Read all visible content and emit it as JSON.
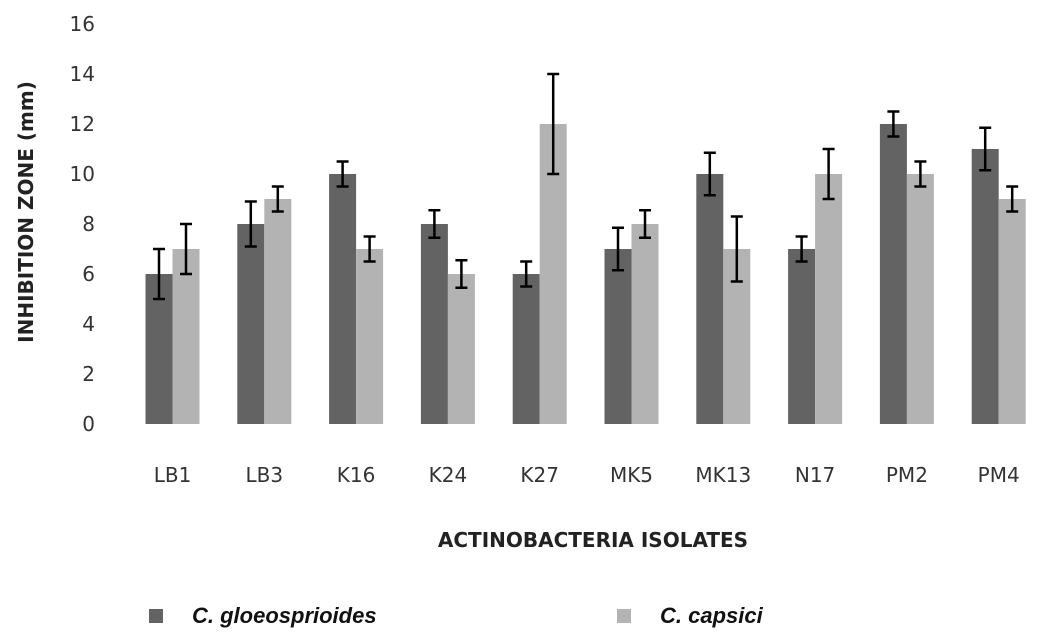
{
  "chart_data": {
    "type": "bar",
    "xlabel": "ACTINOBACTERIA ISOLATES",
    "ylabel": "INHIBITION ZONE (mm)",
    "ylim": [
      0,
      16
    ],
    "yticks": [
      0,
      2,
      4,
      6,
      8,
      10,
      12,
      14,
      16
    ],
    "grid": false,
    "legend_position": "bottom",
    "categories": [
      "LB1",
      "LB3",
      "K16",
      "K24",
      "K27",
      "MK5",
      "MK13",
      "N17",
      "PM2",
      "PM4"
    ],
    "series": [
      {
        "name": "C. gloeosprioides",
        "color": "#636363",
        "values": [
          6,
          8,
          10,
          8,
          6,
          7,
          10,
          7,
          12,
          11
        ],
        "error": [
          1.0,
          0.9,
          0.5,
          0.55,
          0.5,
          0.85,
          0.85,
          0.5,
          0.5,
          0.85
        ]
      },
      {
        "name": "C. capsici",
        "color": "#b3b3b3",
        "values": [
          7,
          9,
          7,
          6,
          12,
          8,
          7,
          10,
          10,
          9
        ],
        "error": [
          1.0,
          0.5,
          0.5,
          0.55,
          2.0,
          0.55,
          1.3,
          1.0,
          0.5,
          0.5
        ]
      }
    ]
  }
}
